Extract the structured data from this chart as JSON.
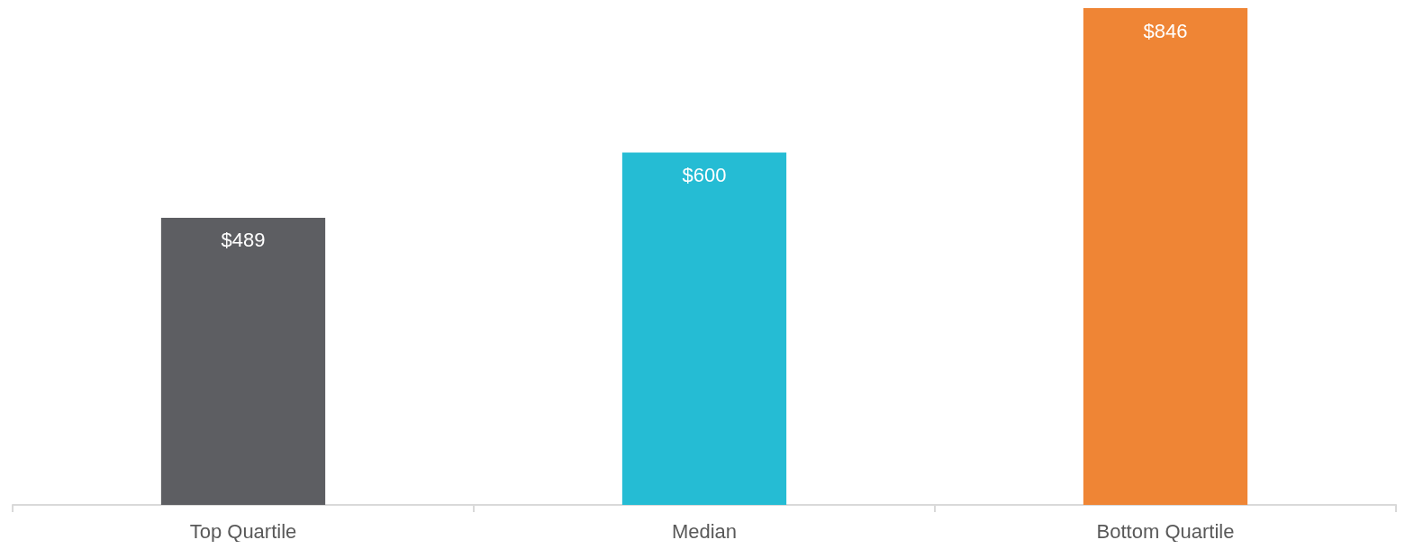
{
  "chart_data": {
    "type": "bar",
    "categories": [
      "Top Quartile",
      "Median",
      "Bottom Quartile"
    ],
    "values": [
      489,
      600,
      846
    ],
    "colors": [
      "#5d5e62",
      "#25bcd4",
      "#ef8535"
    ],
    "value_labels": [
      "$489",
      "$600",
      "$846"
    ]
  }
}
